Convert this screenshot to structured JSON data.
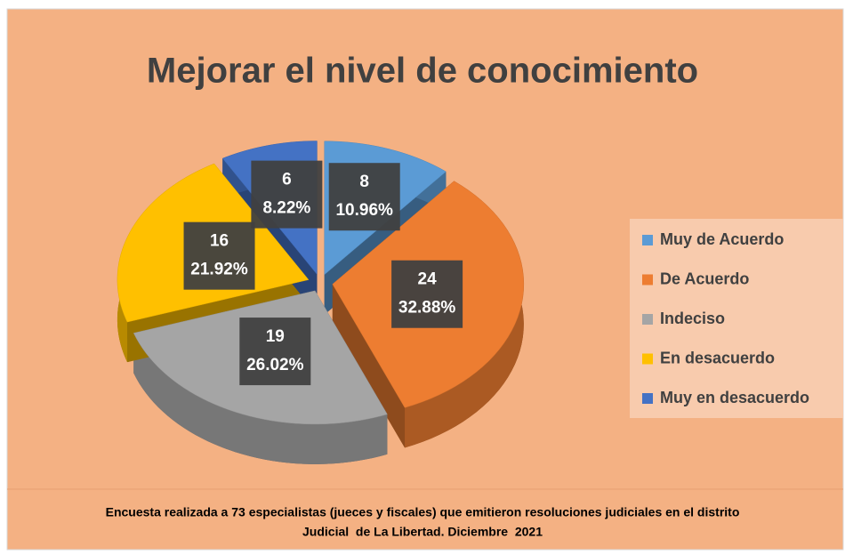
{
  "chart_data": {
    "type": "pie",
    "title": "Mejorar el nivel de conocimiento",
    "categories": [
      "Muy de Acuerdo",
      "De Acuerdo",
      "Indeciso",
      "En desacuerdo",
      "Muy en desacuerdo"
    ],
    "values": [
      8,
      24,
      19,
      16,
      6
    ],
    "percentages": [
      10.96,
      32.88,
      26.02,
      21.92,
      8.22
    ],
    "percentage_labels": [
      "10.96%",
      "32.88%",
      "26.02%",
      "21.92%",
      "8.22%"
    ],
    "colors": [
      "#5b9bd5",
      "#ed7d31",
      "#a5a5a5",
      "#ffc000",
      "#4472c4"
    ],
    "legend": "right",
    "footnote": [
      "Encuesta realizada a 73 especialistas (jueces y fiscales) que emitieron resoluciones judiciales en el distrito",
      "Judicial  de La Libertad. Diciembre  2021"
    ]
  }
}
